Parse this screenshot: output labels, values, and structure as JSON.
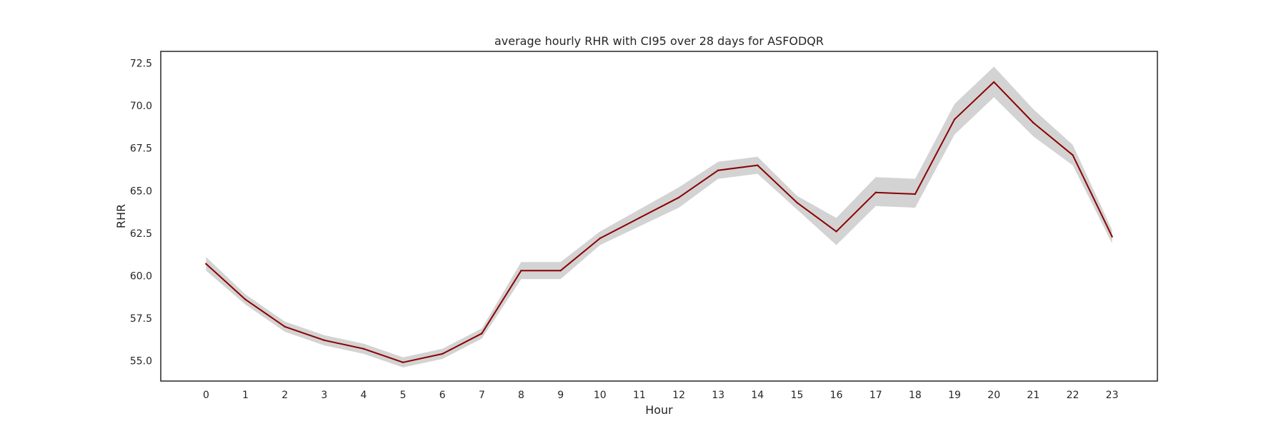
{
  "chart_data": {
    "type": "line",
    "title": "average hourly RHR with CI95 over 28 days for ASFODQR",
    "xlabel": "Hour",
    "ylabel": "RHR",
    "x": [
      0,
      1,
      2,
      3,
      4,
      5,
      6,
      7,
      8,
      9,
      10,
      11,
      12,
      13,
      14,
      15,
      16,
      17,
      18,
      19,
      20,
      21,
      22,
      23
    ],
    "x_ticks": [
      "0",
      "1",
      "2",
      "3",
      "4",
      "5",
      "6",
      "7",
      "8",
      "9",
      "10",
      "11",
      "12",
      "13",
      "14",
      "15",
      "16",
      "17",
      "18",
      "19",
      "20",
      "21",
      "22",
      "23"
    ],
    "xlim": [
      -1.15,
      24.15
    ],
    "ylim": [
      53.8,
      73.2
    ],
    "y_ticks": [
      "55.0",
      "57.5",
      "60.0",
      "62.5",
      "65.0",
      "67.5",
      "70.0",
      "72.5"
    ],
    "series": [
      {
        "values": [
          60.7,
          58.6,
          57.0,
          56.2,
          55.7,
          54.9,
          55.4,
          56.6,
          60.3,
          60.3,
          62.2,
          63.4,
          64.6,
          66.2,
          66.5,
          64.3,
          62.6,
          64.9,
          64.8,
          69.2,
          71.4,
          69.0,
          67.1,
          62.3
        ],
        "ci_lower": [
          60.3,
          58.3,
          56.7,
          55.9,
          55.4,
          54.6,
          55.1,
          56.3,
          59.8,
          59.8,
          61.8,
          62.9,
          64.0,
          65.7,
          66.0,
          63.9,
          61.8,
          64.1,
          64.0,
          68.3,
          70.5,
          68.2,
          66.5,
          61.9
        ],
        "ci_upper": [
          61.1,
          58.9,
          57.3,
          56.5,
          56.0,
          55.2,
          55.7,
          56.9,
          60.8,
          60.8,
          62.6,
          63.9,
          65.2,
          66.7,
          67.0,
          64.7,
          63.4,
          65.8,
          65.7,
          70.1,
          72.3,
          69.8,
          67.7,
          62.7
        ],
        "color": "#8b0000",
        "band_color": "#d3d3d3"
      }
    ],
    "grid": false,
    "legend": "none"
  }
}
